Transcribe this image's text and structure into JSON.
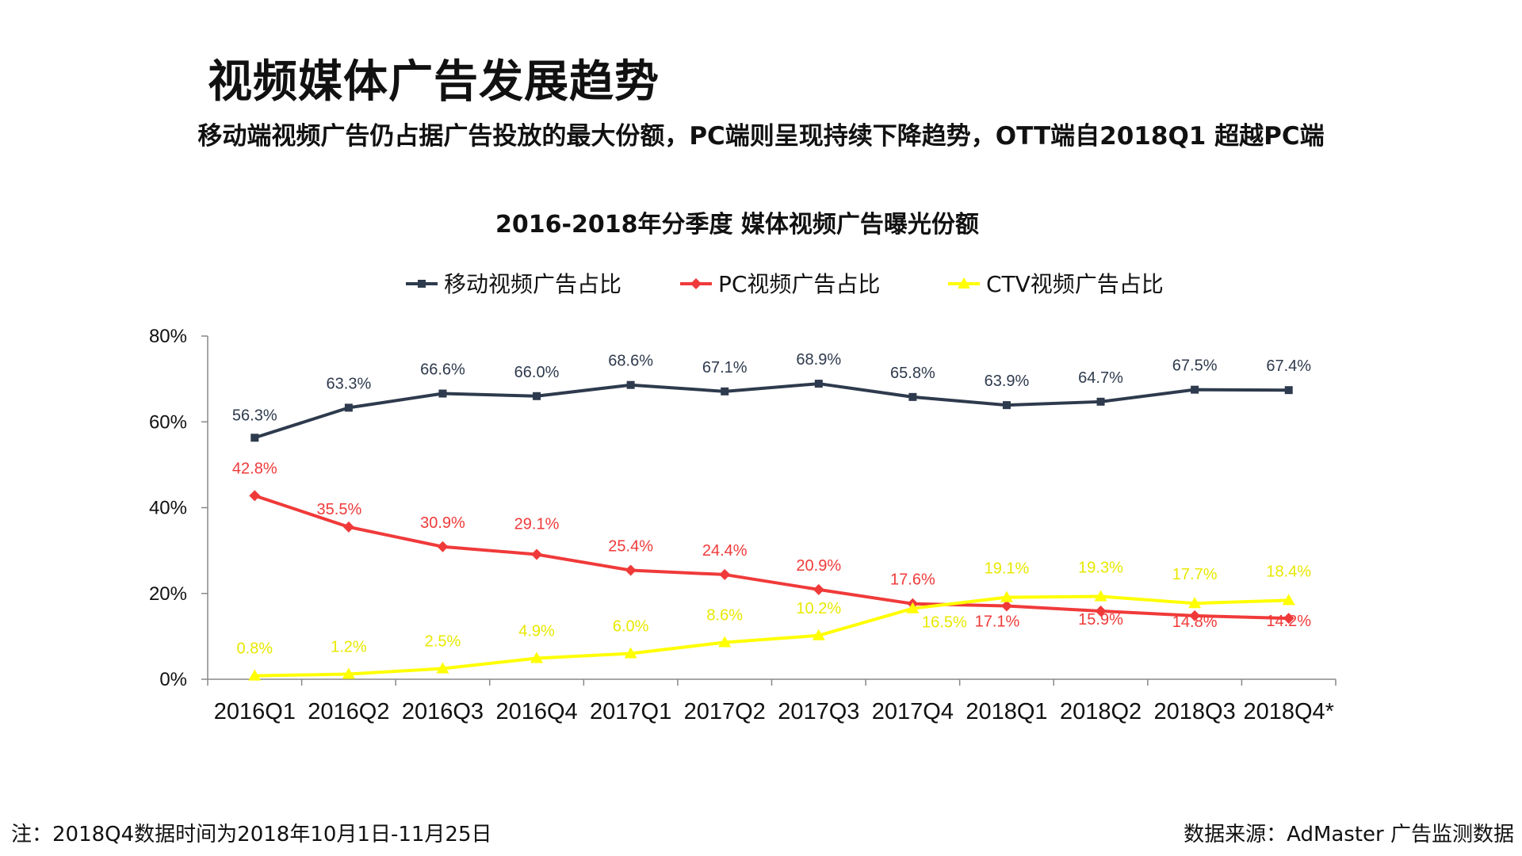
{
  "header": {
    "title": "视频媒体广告发展趋势",
    "subtitle": "移动端视频广告仍占据广告投放的最大份额，PC端则呈现持续下降趋势，OTT端自2018Q1 超越PC端"
  },
  "footer": {
    "note": "注：2018Q4数据时间为2018年10月1日-11月25日",
    "source": "数据来源：AdMaster 广告监测数据"
  },
  "chart_data": {
    "type": "line",
    "title": "2016-2018年分季度  媒体视频广告曝光份额",
    "categories": [
      "2016Q1",
      "2016Q2",
      "2016Q3",
      "2016Q4",
      "2017Q1",
      "2017Q2",
      "2017Q3",
      "2017Q4",
      "2018Q1",
      "2018Q2",
      "2018Q3",
      "2018Q4*"
    ],
    "ylim": [
      0,
      80
    ],
    "yticks": [
      0,
      20,
      40,
      60,
      80
    ],
    "ytick_labels": [
      "0%",
      "20%",
      "40%",
      "60%",
      "80%"
    ],
    "legend_position": "top-center",
    "grid": false,
    "series": [
      {
        "name": "移动视频广告占比",
        "color": "#2e3a4d",
        "marker": "square",
        "values": [
          56.3,
          63.3,
          66.6,
          66.0,
          68.6,
          67.1,
          68.9,
          65.8,
          63.9,
          64.7,
          67.5,
          67.4
        ],
        "labels": [
          "56.3%",
          "63.3%",
          "66.6%",
          "66.0%",
          "68.6%",
          "67.1%",
          "68.9%",
          "65.8%",
          "63.9%",
          "64.7%",
          "67.5%",
          "67.4%"
        ]
      },
      {
        "name": "PC视频广告占比",
        "color": "#f03a3a",
        "marker": "diamond",
        "values": [
          42.8,
          35.5,
          30.9,
          29.1,
          25.4,
          24.4,
          20.9,
          17.6,
          17.1,
          15.9,
          14.8,
          14.2
        ],
        "labels": [
          "42.8%",
          "35.5%",
          "30.9%",
          "29.1%",
          "25.4%",
          "24.4%",
          "20.9%",
          "17.6%",
          "17.1%",
          "15.9%",
          "14.8%",
          "14.2%"
        ]
      },
      {
        "name": "CTV视频广告占比",
        "color": "#ffff00",
        "marker": "triangle",
        "values": [
          0.8,
          1.2,
          2.5,
          4.9,
          6.0,
          8.6,
          10.2,
          16.5,
          19.1,
          19.3,
          17.7,
          18.4
        ],
        "labels": [
          "0.8%",
          "1.2%",
          "2.5%",
          "4.9%",
          "6.0%",
          "8.6%",
          "10.2%",
          "16.5%",
          "19.1%",
          "19.3%",
          "17.7%",
          "18.4%"
        ]
      }
    ]
  }
}
